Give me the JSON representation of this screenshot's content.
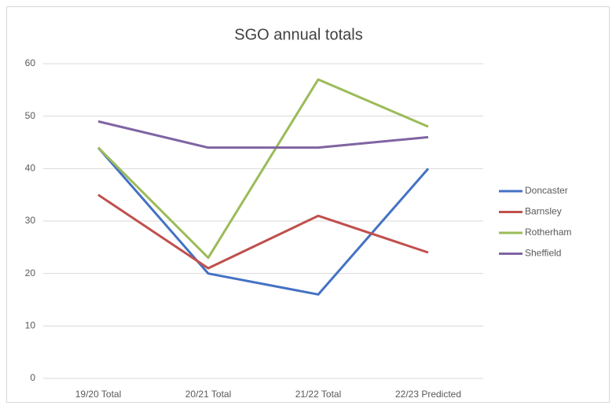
{
  "chart_data": {
    "type": "line",
    "title": "SGO annual totals",
    "categories": [
      "19/20 Total",
      "20/21 Total",
      "21/22 Total",
      "22/23 Predicted"
    ],
    "series": [
      {
        "name": "Doncaster",
        "color": "#4472c4",
        "values": [
          44,
          20,
          16,
          40
        ]
      },
      {
        "name": "Barnsley",
        "color": "#c0504d",
        "values": [
          35,
          21,
          31,
          24
        ]
      },
      {
        "name": "Rotherham",
        "color": "#9bbb59",
        "values": [
          44,
          23,
          57,
          48
        ]
      },
      {
        "name": "Sheffield",
        "color": "#8064a2",
        "values": [
          49,
          44,
          44,
          46
        ]
      }
    ],
    "ylim": [
      0,
      60
    ],
    "yticks": [
      0,
      10,
      20,
      30,
      40,
      50,
      60
    ],
    "grid": true,
    "legend": "right"
  }
}
